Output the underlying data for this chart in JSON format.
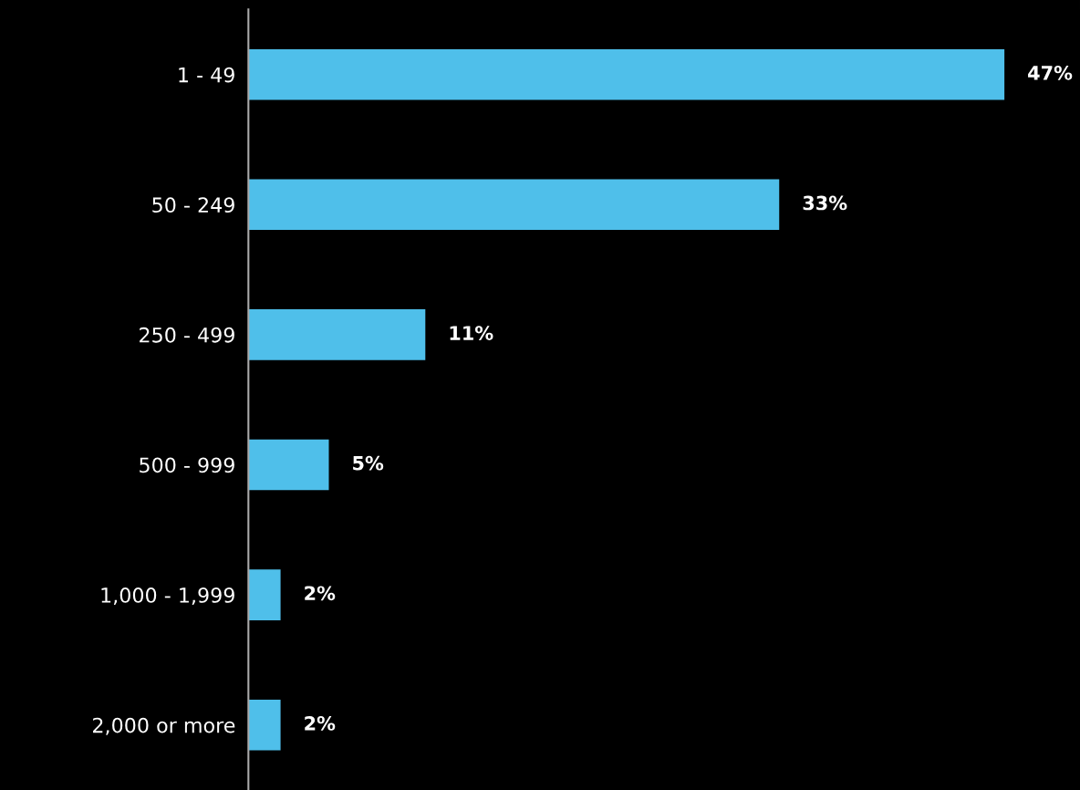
{
  "chart_data": {
    "type": "bar",
    "orientation": "horizontal",
    "categories": [
      "1 - 49",
      "50 - 249",
      "250 - 499",
      "500 - 999",
      "1,000 - 1,999",
      "2,000 or more"
    ],
    "values": [
      47,
      33,
      11,
      5,
      2,
      2
    ],
    "value_labels": [
      "47%",
      "33%",
      "11%",
      "5%",
      "2%",
      "2%"
    ],
    "color": "#4fbfea"
  }
}
